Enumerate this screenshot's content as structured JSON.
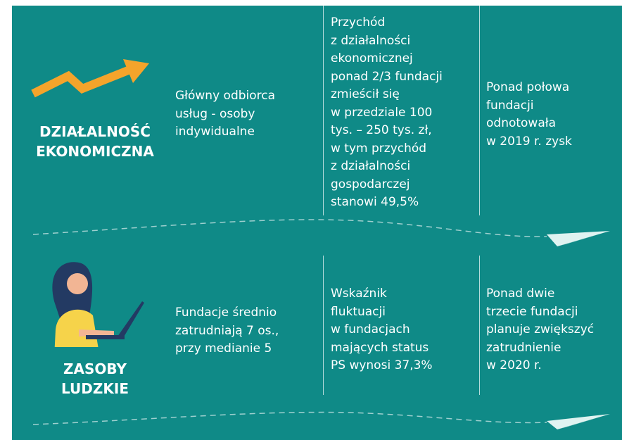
{
  "sections": [
    {
      "title_lines": [
        "DZIAŁALNOŚĆ",
        "EKONOMICZNA"
      ],
      "columns": [
        [
          "Główny odbiorca",
          "usług - osoby",
          "indywidualne"
        ],
        [
          "Przychód",
          "z działalności",
          "ekonomicznej",
          "ponad 2/3 fundacji",
          "zmieścił się",
          "w przedziale 100",
          "tys. – 250 tys. zł,",
          "w tym przychód",
          "z działalności",
          "gospodarczej",
          "stanowi 49,5%"
        ],
        [
          "Ponad połowa",
          "fundacji",
          "odnotowała",
          "w 2019 r. zysk"
        ]
      ]
    },
    {
      "title_lines": [
        "ZASOBY",
        "LUDZKIE"
      ],
      "columns": [
        [
          "Fundacje średnio",
          "zatrudniają 7 os.,",
          "przy medianie 5"
        ],
        [
          "Wskaźnik",
          "fluktuacji",
          "w fundacjach",
          "mających status",
          "PS wynosi 37,3%"
        ],
        [
          "Ponad dwie",
          "trzecie fundacji",
          "planuje zwiększyć",
          "zatrudnienie",
          "w 2020 r."
        ]
      ]
    }
  ]
}
